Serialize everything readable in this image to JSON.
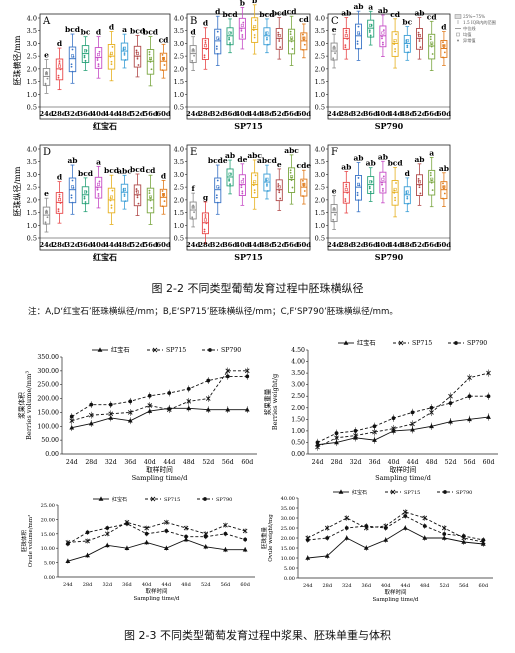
{
  "figure_2_2": {
    "caption": "图 2-2 不同类型葡萄发育过程中胚珠横纵径",
    "note": "注：A,D‘红宝石’胚珠横纵径/mm；B,E‘SP715’胚珠横纵径/mm；C,F‘SP790’胚珠横纵径/mm。",
    "legend": [
      "25%~75%",
      "1.5 IQR内的范围",
      "中位线",
      "均值",
      "异常值"
    ],
    "ylabel_top": "胚珠横径/mm",
    "ylabel_bottom": "胚珠纵径/mm",
    "x_categories": [
      "24d",
      "28d",
      "32d",
      "36d",
      "40d",
      "44d",
      "48d",
      "52d",
      "56d",
      "60d"
    ],
    "y_ticks": [
      "0.5",
      "1.0",
      "1.5",
      "2.0",
      "2.5",
      "3.0",
      "3.5",
      "4.0"
    ],
    "colors": [
      "#8c8c8c",
      "#e8484a",
      "#3a74c6",
      "#2aa37a",
      "#c64cc6",
      "#e6b020",
      "#3a9ed6",
      "#b04a4a",
      "#7aa640",
      "#e07a1a"
    ]
  },
  "chart_data": [
    {
      "type": "box",
      "panel": "A",
      "xlabel": "红宝石",
      "ylabel": "胚珠横径/mm",
      "ylim": [
        0.5,
        4.0
      ],
      "categories": [
        "24d",
        "28d",
        "32d",
        "36d",
        "40d",
        "44d",
        "48d",
        "52d",
        "56d",
        "60d"
      ],
      "medians": [
        1.7,
        2.0,
        2.4,
        2.6,
        2.45,
        2.5,
        2.7,
        2.5,
        2.3,
        2.3
      ],
      "letters": [
        "e",
        "d",
        "bcd",
        "bc",
        "d",
        "d",
        "a",
        "bcd",
        "bcd",
        "cd"
      ]
    },
    {
      "type": "box",
      "panel": "B",
      "xlabel": "SP715",
      "ylabel": "",
      "ylim": [
        0.5,
        4.0
      ],
      "categories": [
        "24d",
        "28d",
        "32d",
        "36d",
        "40d",
        "44d",
        "48d",
        "52d",
        "56d",
        "60d"
      ],
      "medians": [
        2.6,
        2.8,
        3.1,
        3.3,
        3.6,
        3.55,
        3.3,
        3.2,
        3.1,
        3.1
      ],
      "letters": [
        "d",
        "d",
        "d",
        "bcd",
        "b",
        "b",
        "bcd",
        "bcd",
        "cd",
        "cd"
      ]
    },
    {
      "type": "box",
      "panel": "C",
      "xlabel": "SP790",
      "ylabel": "",
      "ylim": [
        0.5,
        4.0
      ],
      "categories": [
        "24d",
        "28d",
        "32d",
        "36d",
        "40d",
        "44d",
        "48d",
        "52d",
        "56d",
        "60d"
      ],
      "medians": [
        2.7,
        3.2,
        3.3,
        3.6,
        3.3,
        3.0,
        3.0,
        3.2,
        2.9,
        2.8
      ],
      "letters": [
        "e",
        "ab",
        "ab",
        "a",
        "ab",
        "cd",
        "bc",
        "ab",
        "cd",
        "d"
      ]
    },
    {
      "type": "box",
      "panel": "D",
      "xlabel": "红宝石",
      "ylabel": "胚珠纵径/mm",
      "ylim": [
        0.5,
        4.0
      ],
      "categories": [
        "24d",
        "28d",
        "32d",
        "36d",
        "40d",
        "44d",
        "48d",
        "52d",
        "56d",
        "60d"
      ],
      "medians": [
        1.4,
        1.9,
        2.4,
        2.2,
        2.5,
        2.0,
        2.3,
        2.2,
        2.0,
        2.1
      ],
      "letters": [
        "e",
        "d",
        "ab",
        "bcd",
        "a",
        "bcd",
        "abc",
        "bcd",
        "cd",
        "d"
      ]
    },
    {
      "type": "box",
      "panel": "E",
      "xlabel": "SP715",
      "ylabel": "",
      "ylim": [
        0.5,
        4.0
      ],
      "categories": [
        "24d",
        "28d",
        "32d",
        "36d",
        "40d",
        "44d",
        "48d",
        "52d",
        "56d",
        "60d"
      ],
      "medians": [
        1.6,
        1.1,
        2.4,
        2.9,
        2.6,
        2.6,
        2.7,
        2.4,
        2.8,
        2.5
      ],
      "letters": [
        "f",
        "g",
        "bcde",
        "ab",
        "de",
        "abc",
        "abcd",
        "e",
        "abc",
        "cde"
      ]
    },
    {
      "type": "box",
      "panel": "F",
      "xlabel": "SP790",
      "ylabel": "",
      "ylim": [
        0.5,
        4.0
      ],
      "categories": [
        "24d",
        "28d",
        "32d",
        "36d",
        "40d",
        "44d",
        "48d",
        "52d",
        "56d",
        "60d"
      ],
      "medians": [
        1.5,
        2.3,
        2.5,
        2.6,
        2.7,
        2.3,
        2.2,
        2.6,
        2.7,
        2.4
      ],
      "letters": [
        "e",
        "ab",
        "ab",
        "ab",
        "ab",
        "bcd",
        "d",
        "ab",
        "a",
        "ab"
      ]
    },
    {
      "type": "line",
      "panel": "berries_volume",
      "title": "",
      "xlabel": "Sampling time/d",
      "xlabel_cn": "取样时间",
      "ylabel": "Berries volume/mm³",
      "ylabel_cn": "浆果体积",
      "x": [
        "24d",
        "28d",
        "32d",
        "36d",
        "40d",
        "44d",
        "48d",
        "52d",
        "56d",
        "60d"
      ],
      "ylim": [
        0,
        350
      ],
      "yticks": [
        "0.00",
        "50.00",
        "100.00",
        "150.00",
        "200.00",
        "250.00",
        "300.00",
        "350.00"
      ],
      "series": [
        {
          "name": "红宝石",
          "values": [
            95,
            110,
            130,
            120,
            155,
            165,
            165,
            160,
            160,
            160
          ]
        },
        {
          "name": "SP715",
          "values": [
            120,
            140,
            145,
            150,
            175,
            160,
            190,
            200,
            300,
            300
          ]
        },
        {
          "name": "SP790",
          "values": [
            135,
            178,
            178,
            190,
            210,
            220,
            235,
            265,
            280,
            280
          ]
        }
      ]
    },
    {
      "type": "line",
      "panel": "berries_weight",
      "title": "",
      "xlabel": "Sampling time/d",
      "xlabel_cn": "取样时间",
      "ylabel": "Berries weight/g",
      "ylabel_cn": "浆果重量",
      "x": [
        "24d",
        "28d",
        "32d",
        "36d",
        "40d",
        "44d",
        "48d",
        "52d",
        "56d",
        "60d"
      ],
      "ylim": [
        0,
        4.5
      ],
      "yticks": [
        "0.00",
        "0.50",
        "1.00",
        "1.50",
        "2.00",
        "2.50",
        "3.00",
        "3.50",
        "4.00",
        "4.50"
      ],
      "series": [
        {
          "name": "红宝石",
          "values": [
            0.4,
            0.5,
            0.7,
            0.6,
            1.0,
            1.05,
            1.2,
            1.4,
            1.5,
            1.6
          ]
        },
        {
          "name": "SP715",
          "values": [
            0.3,
            0.7,
            0.8,
            0.95,
            1.1,
            1.3,
            1.8,
            2.5,
            3.3,
            3.5
          ]
        },
        {
          "name": "SP790",
          "values": [
            0.5,
            0.9,
            1.0,
            1.2,
            1.55,
            1.8,
            2.0,
            2.2,
            2.5,
            2.5
          ]
        }
      ]
    },
    {
      "type": "line",
      "panel": "ovule_volume",
      "title": "",
      "xlabel": "Sampling time/d",
      "xlabel_cn": "取样时间",
      "ylabel": "Ovule volume/mm³",
      "ylabel_cn": "胚珠体积",
      "x": [
        "24d",
        "28d",
        "32d",
        "36d",
        "40d",
        "44d",
        "48d",
        "52d",
        "56d",
        "60d"
      ],
      "ylim": [
        0,
        25
      ],
      "yticks": [
        "0.00",
        "5.00",
        "10.00",
        "15.00",
        "20.00",
        "25.00"
      ],
      "series": [
        {
          "name": "红宝石",
          "values": [
            5.5,
            7.5,
            11,
            10,
            12,
            10,
            13,
            10.5,
            9.5,
            9.5
          ]
        },
        {
          "name": "SP715",
          "values": [
            12,
            12.5,
            15,
            19,
            17,
            19,
            17,
            15,
            18,
            16
          ]
        },
        {
          "name": "SP790",
          "values": [
            11.5,
            15.5,
            17,
            18.5,
            15,
            16,
            14,
            14,
            15,
            13
          ]
        }
      ]
    },
    {
      "type": "line",
      "panel": "ovule_weight",
      "title": "",
      "xlabel": "Sampling time/d",
      "xlabel_cn": "取样时间",
      "ylabel": "Ovule weight/mg",
      "ylabel_cn": "胚珠重量",
      "x": [
        "24d",
        "28d",
        "32d",
        "36d",
        "40d",
        "44d",
        "48d",
        "52d",
        "56d",
        "60d"
      ],
      "ylim": [
        0,
        40
      ],
      "yticks": [
        "0.00",
        "5.00",
        "10.00",
        "15.00",
        "20.00",
        "25.00",
        "30.00",
        "35.00",
        "40.00"
      ],
      "series": [
        {
          "name": "红宝石",
          "values": [
            10,
            11,
            20,
            15,
            19,
            25,
            20,
            20,
            18,
            17
          ]
        },
        {
          "name": "SP715",
          "values": [
            20,
            25,
            30,
            25,
            26,
            33,
            30,
            25,
            20,
            18
          ]
        },
        {
          "name": "SP790",
          "values": [
            19,
            20,
            25,
            26,
            25,
            31,
            26,
            22,
            21,
            19
          ]
        }
      ]
    }
  ],
  "figure_2_3": {
    "caption": "图 2-3 不同类型葡萄发育过程中浆果、胚珠单重与体积"
  }
}
